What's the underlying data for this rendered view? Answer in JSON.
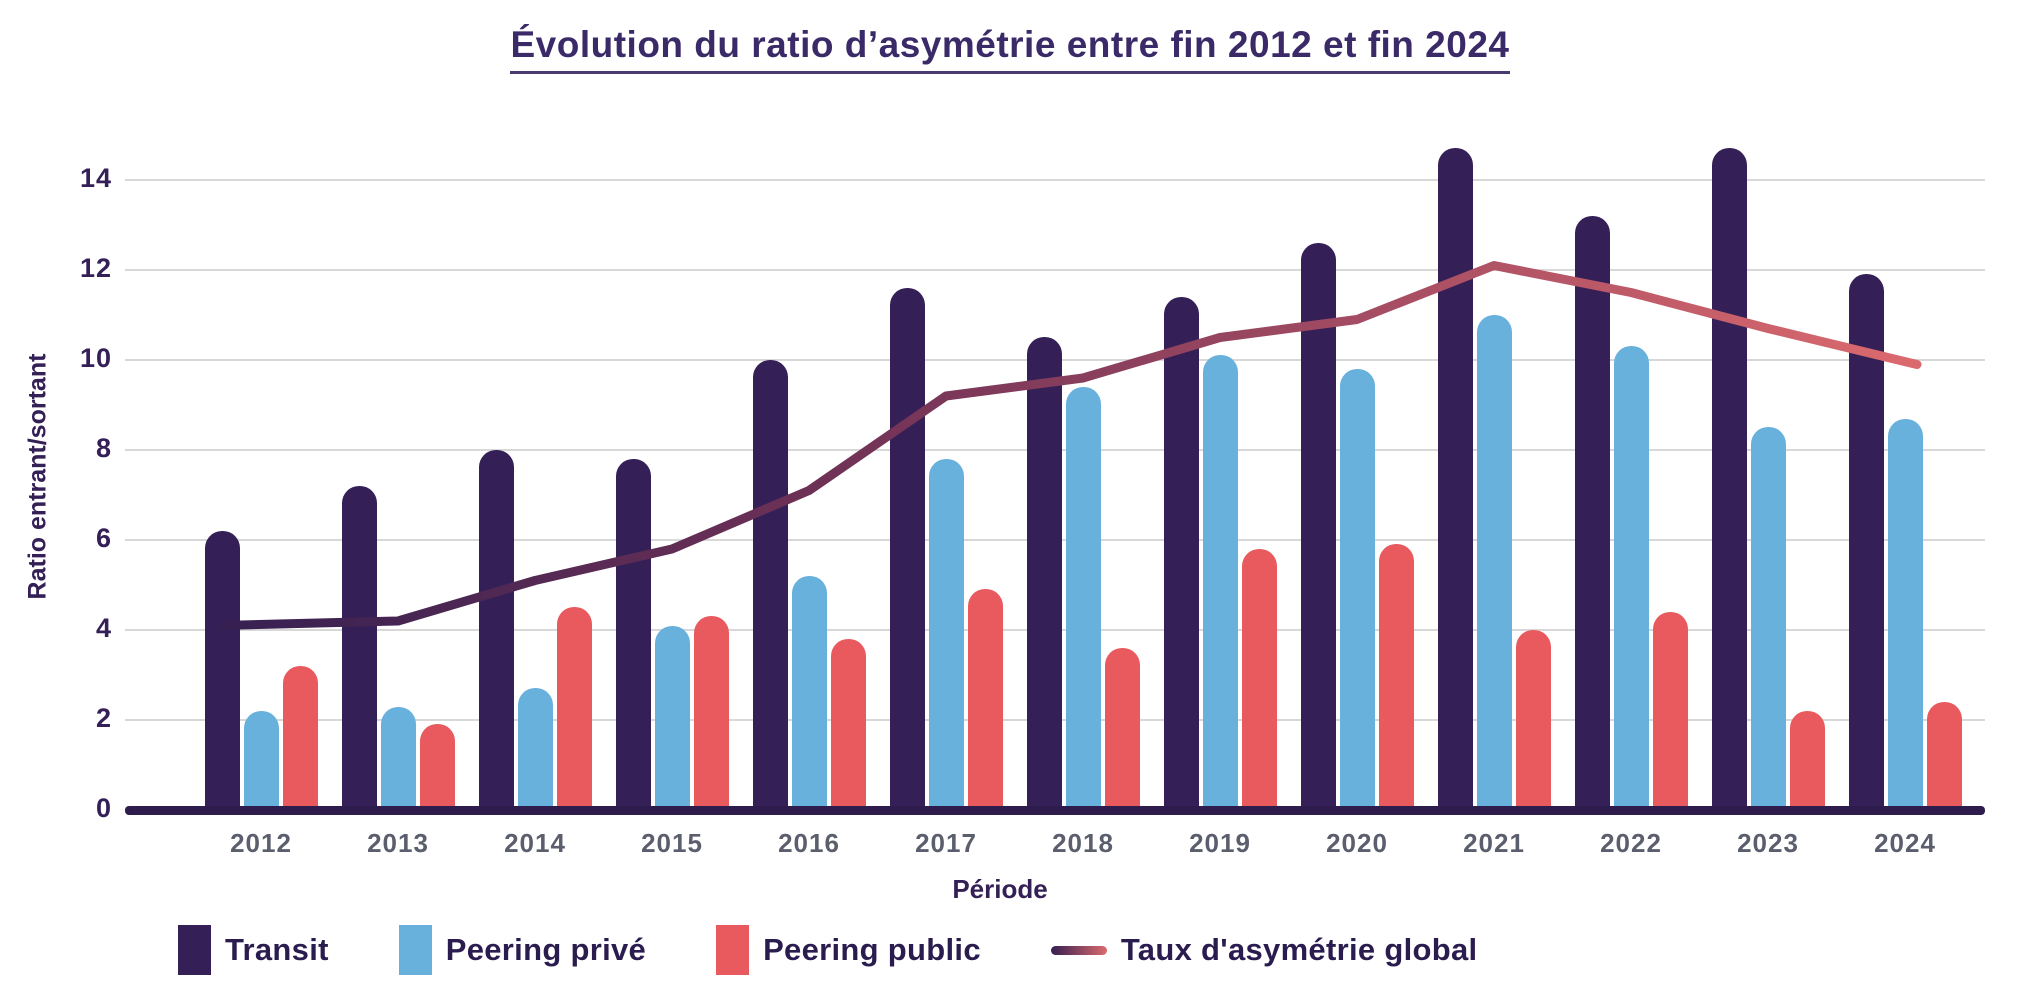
{
  "title": "Évolution du ratio d’asymétrie entre fin 2012 et fin 2024",
  "chart_data": {
    "type": "bar+line",
    "title": "Évolution du ratio d’asymétrie entre fin 2012 et fin 2024",
    "xlabel": "Période",
    "ylabel": "Ratio entrant/sortant",
    "categories": [
      "2012",
      "2013",
      "2014",
      "2015",
      "2016",
      "2017",
      "2018",
      "2019",
      "2020",
      "2021",
      "2022",
      "2023",
      "2024"
    ],
    "yticks": [
      0,
      2,
      4,
      6,
      8,
      10,
      12,
      14
    ],
    "ylim": [
      0,
      15
    ],
    "grid": true,
    "legend_position": "bottom-left",
    "series": [
      {
        "name": "Transit",
        "type": "bar",
        "color": "#342057",
        "values": [
          6.2,
          7.2,
          8.0,
          7.8,
          10.0,
          11.6,
          10.5,
          11.4,
          12.6,
          14.7,
          13.2,
          14.7,
          11.9
        ]
      },
      {
        "name": "Peering privé",
        "type": "bar",
        "color": "#68b1dc",
        "values": [
          2.2,
          2.3,
          2.7,
          4.1,
          5.2,
          7.8,
          9.4,
          10.1,
          9.8,
          11.0,
          10.3,
          8.5,
          8.7
        ]
      },
      {
        "name": "Peering public",
        "type": "bar",
        "color": "#e85a5e",
        "values": [
          3.2,
          1.9,
          4.5,
          4.3,
          3.8,
          4.9,
          3.6,
          5.8,
          5.9,
          4.0,
          4.4,
          2.2,
          2.4
        ]
      },
      {
        "name": "Taux d'asymétrie global",
        "type": "line",
        "gradient": [
          "#362051",
          "#6e3156",
          "#a04a62",
          "#db6a6e"
        ],
        "values": [
          4.1,
          4.2,
          5.1,
          5.8,
          7.1,
          9.2,
          9.6,
          10.5,
          10.9,
          12.1,
          11.5,
          10.7,
          9.9
        ]
      }
    ]
  },
  "colors": {
    "background": "#ffffff",
    "grid": "#d8d8d8",
    "baseline": "#2e1d4c",
    "axis_text": "#342057",
    "year_text": "#5b5f6d",
    "title_text": "#3b2a68",
    "legend_text": "#2b1c4f"
  }
}
